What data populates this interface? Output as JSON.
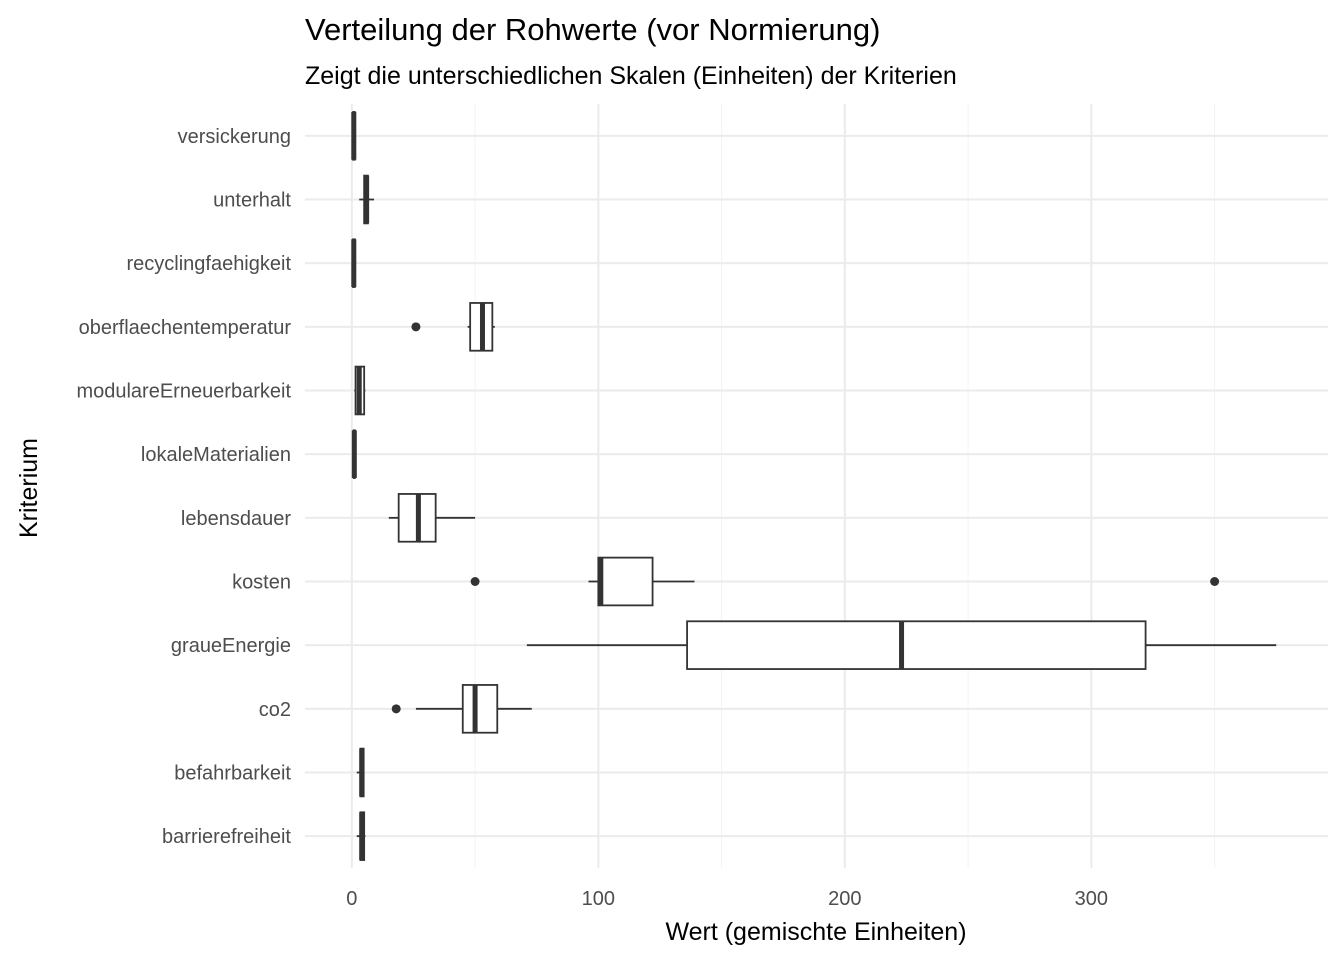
{
  "chart_data": {
    "type": "boxplot",
    "title": "Verteilung der Rohwerte (vor Normierung)",
    "subtitle": "Zeigt die unterschiedlichen Skalen (Einheiten) der Kriterien",
    "xlabel": "Wert (gemischte Einheiten)",
    "ylabel": "Kriterium",
    "xlim": [
      -19,
      396
    ],
    "x_ticks": [
      0,
      100,
      200,
      300
    ],
    "x_tick_labels": [
      "0",
      "100",
      "200",
      "300"
    ],
    "grid": true,
    "legend": "none",
    "categories": [
      "barrierefreiheit",
      "befahrbarkeit",
      "co2",
      "graueEnergie",
      "kosten",
      "lebensdauer",
      "lokaleMaterialien",
      "modulareErneuerbarkeit",
      "oberflaechentemperatur",
      "recyclingfaehigkeit",
      "unterhalt",
      "versickerung"
    ],
    "boxes": [
      {
        "category": "barrierefreiheit",
        "min": 2,
        "q1": 3.5,
        "median": 4,
        "q3": 5,
        "max": 5.5,
        "outliers": []
      },
      {
        "category": "befahrbarkeit",
        "min": 2,
        "q1": 3.5,
        "median": 4,
        "q3": 4.8,
        "max": 5,
        "outliers": []
      },
      {
        "category": "co2",
        "min": 26,
        "q1": 45,
        "median": 50,
        "q3": 59,
        "max": 73,
        "outliers": [
          18
        ]
      },
      {
        "category": "graueEnergie",
        "min": 71,
        "q1": 136,
        "median": 223,
        "q3": 322,
        "max": 375,
        "outliers": []
      },
      {
        "category": "kosten",
        "min": 96,
        "q1": 100,
        "median": 101,
        "q3": 122,
        "max": 139,
        "outliers": [
          50,
          350
        ]
      },
      {
        "category": "lebensdauer",
        "min": 15,
        "q1": 19,
        "median": 27,
        "q3": 34,
        "max": 50,
        "outliers": []
      },
      {
        "category": "lokaleMaterialien",
        "min": 0.5,
        "q1": 0.8,
        "median": 1,
        "q3": 1.2,
        "max": 1.5,
        "outliers": []
      },
      {
        "category": "modulareErneuerbarkeit",
        "min": 1,
        "q1": 1.5,
        "median": 3,
        "q3": 5,
        "max": 5.5,
        "outliers": []
      },
      {
        "category": "oberflaechentemperatur",
        "min": 47,
        "q1": 48,
        "median": 53,
        "q3": 57,
        "max": 58,
        "outliers": [
          26
        ]
      },
      {
        "category": "recyclingfaehigkeit",
        "min": 0.3,
        "q1": 0.5,
        "median": 0.8,
        "q3": 1.2,
        "max": 1.5,
        "outliers": []
      },
      {
        "category": "unterhalt",
        "min": 3,
        "q1": 5,
        "median": 6,
        "q3": 6.5,
        "max": 9,
        "outliers": []
      },
      {
        "category": "versickerung",
        "min": 0.3,
        "q1": 0.5,
        "median": 0.8,
        "q3": 1.2,
        "max": 1.5,
        "outliers": []
      }
    ]
  }
}
